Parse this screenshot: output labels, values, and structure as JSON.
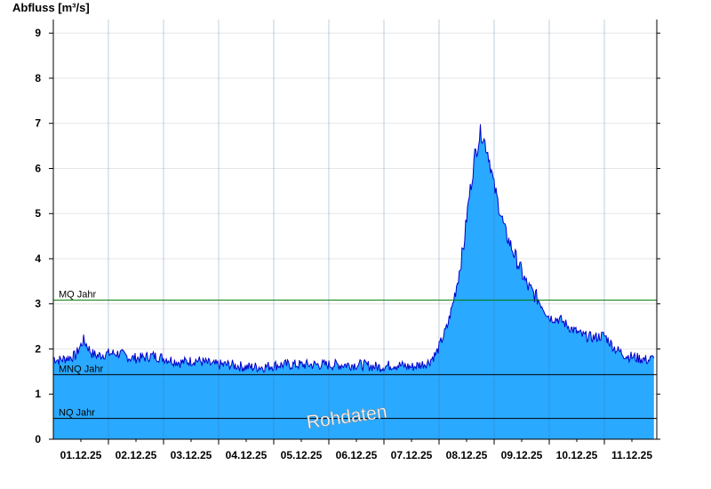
{
  "chart_data": {
    "type": "area",
    "title": "",
    "ylabel": "Abfluss [m³/s]",
    "xlabel": "",
    "ylim": [
      0,
      9.3
    ],
    "y_ticks": [
      "0",
      "1",
      "2",
      "3",
      "4",
      "5",
      "6",
      "7",
      "8",
      "9"
    ],
    "x_tick_labels": [
      "01.12.25",
      "02.12.25",
      "03.12.25",
      "04.12.25",
      "05.12.25",
      "06.12.25",
      "07.12.25",
      "08.12.25",
      "09.12.25",
      "10.12.25",
      "11.12.25"
    ],
    "x_range_days": [
      0,
      10.9
    ],
    "grid": true,
    "fill_color": "#29a9ff",
    "line_color": "#0000cc",
    "series": [
      {
        "x": [
          0,
          0.1,
          0.25,
          0.4,
          0.55,
          0.7,
          0.8,
          1.0,
          1.2,
          1.4,
          1.6,
          1.8,
          2.0,
          2.3,
          2.6,
          2.9,
          3.2,
          3.5,
          3.8,
          4.1,
          4.4,
          4.7,
          5.0,
          5.3,
          5.6,
          5.9,
          6.2,
          6.5,
          6.8,
          6.95,
          7.05,
          7.15,
          7.25,
          7.35,
          7.45,
          7.5,
          7.55,
          7.6,
          7.65,
          7.7,
          7.75,
          7.8,
          7.9,
          8.0,
          8.1,
          8.2,
          8.3,
          8.4,
          8.5,
          8.6,
          8.8,
          9.0,
          9.2,
          9.4,
          9.6,
          9.8,
          10.0,
          10.2,
          10.4,
          10.6,
          10.8,
          10.9
        ],
        "y": [
          1.8,
          1.75,
          1.8,
          1.85,
          2.2,
          1.9,
          1.85,
          1.9,
          1.9,
          1.8,
          1.8,
          1.85,
          1.8,
          1.7,
          1.75,
          1.65,
          1.65,
          1.6,
          1.6,
          1.65,
          1.65,
          1.65,
          1.65,
          1.65,
          1.65,
          1.6,
          1.65,
          1.6,
          1.7,
          1.9,
          2.2,
          2.5,
          3.0,
          3.6,
          4.3,
          4.9,
          5.4,
          5.8,
          6.3,
          6.5,
          6.8,
          6.7,
          6.3,
          5.6,
          5.1,
          4.6,
          4.3,
          4.0,
          3.7,
          3.4,
          3.1,
          2.7,
          2.65,
          2.45,
          2.3,
          2.25,
          2.3,
          2.0,
          1.85,
          1.8,
          1.75,
          1.8
        ]
      }
    ],
    "reference_lines": [
      {
        "label": "MQ Jahr",
        "value": 3.08,
        "color": "#007700"
      },
      {
        "label": "MNQ Jahr",
        "value": 1.43,
        "color": "#000000"
      },
      {
        "label": "NQ Jahr",
        "value": 0.46,
        "color": "#000000"
      }
    ],
    "watermark": "Rohdaten"
  }
}
